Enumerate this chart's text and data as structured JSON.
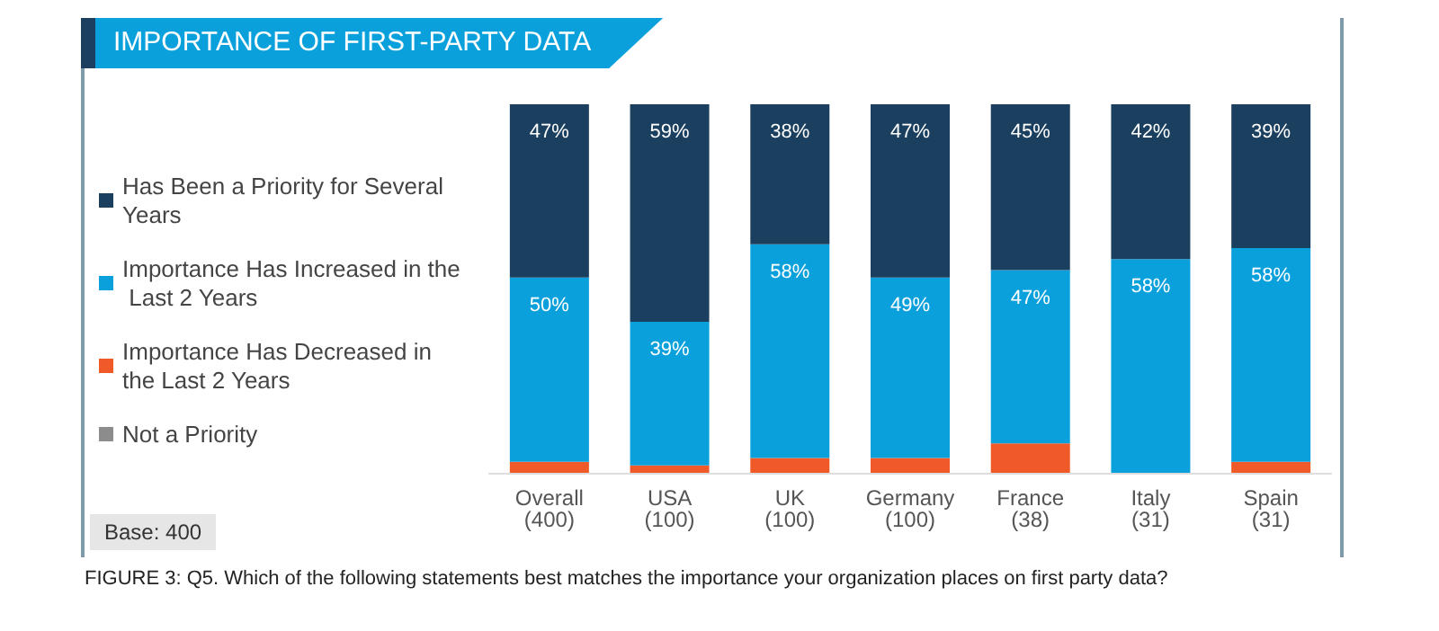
{
  "chart_data": {
    "type": "bar",
    "stacked": true,
    "title": "IMPORTANCE OF FIRST-PARTY DATA",
    "categories": [
      "Overall (400)",
      "USA (100)",
      "UK (100)",
      "Germany (100)",
      "France (38)",
      "Italy (31)",
      "Spain (31)"
    ],
    "series": [
      {
        "name": "Not a Priority",
        "color": "#8c8c8c",
        "values": [
          0,
          0,
          0,
          0,
          0,
          0,
          0
        ]
      },
      {
        "name": "Importance Has Decreased in the Last 2 Years",
        "color": "#f05a28",
        "values": [
          3,
          2,
          4,
          4,
          8,
          0,
          3
        ]
      },
      {
        "name": "Importance Has Increased in the Last 2 Years",
        "color": "#0aa0dc",
        "values": [
          50,
          39,
          58,
          49,
          47,
          58,
          58
        ],
        "value_labels": [
          "50%",
          "39%",
          "58%",
          "49%",
          "47%",
          "58%",
          "58%"
        ]
      },
      {
        "name": "Has Been a Priority for Several Years",
        "color": "#1b3f5e",
        "values": [
          47,
          59,
          38,
          47,
          45,
          42,
          39
        ],
        "value_labels": [
          "47%",
          "59%",
          "38%",
          "47%",
          "45%",
          "42%",
          "39%"
        ]
      }
    ],
    "legend": "left",
    "annotations": [
      "Base: 400",
      "FIGURE 3: Q5. Which of the following statements best matches the importance your organization places on first party data?"
    ]
  }
}
